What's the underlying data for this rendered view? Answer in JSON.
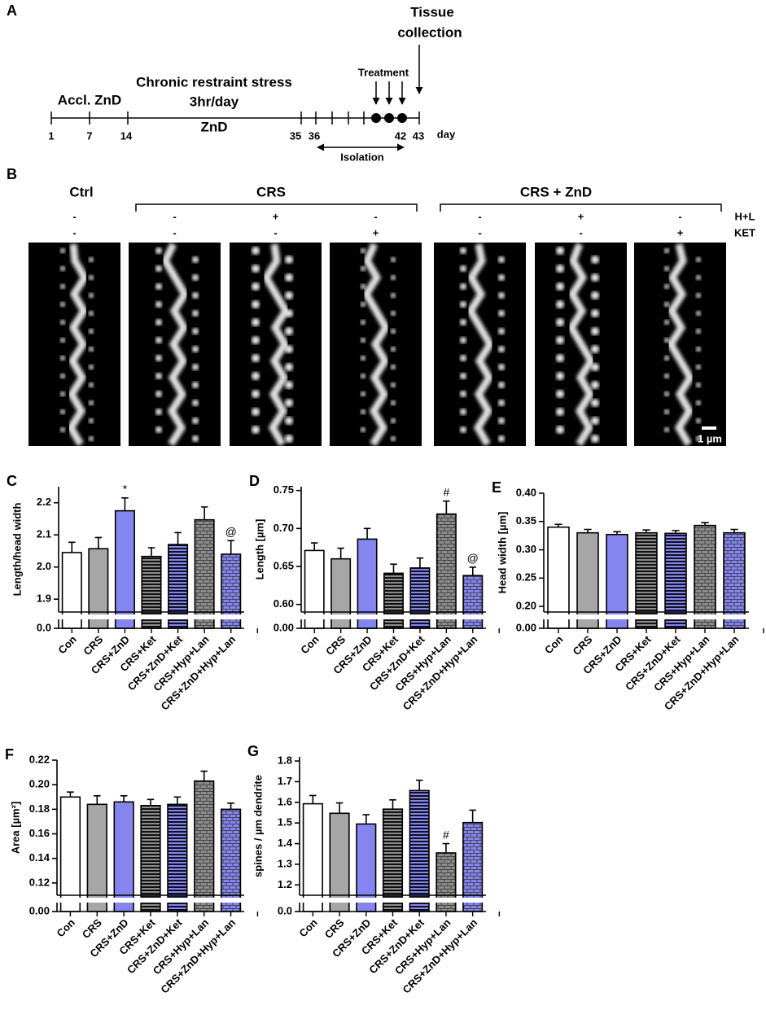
{
  "timeline": {
    "panel": "A",
    "tissue": [
      "Tissue",
      "collection"
    ],
    "treatment": "Treatment",
    "accl": "Accl. ZnD",
    "crs": [
      "Chronic restraint stress",
      "3hr/day",
      "ZnD"
    ],
    "days": [
      "1",
      "7",
      "14",
      "35",
      "36",
      "42",
      "43"
    ],
    "day_unit": "day",
    "isolation": "Isolation"
  },
  "images": {
    "panel": "B",
    "groups": [
      "Ctrl",
      "CRS",
      "CRS + ZnD"
    ],
    "rows": [
      {
        "name": "H+L",
        "signs": [
          "-",
          "-",
          "+",
          "-",
          "-",
          "+",
          "-"
        ]
      },
      {
        "name": "KET",
        "signs": [
          "-",
          "-",
          "-",
          "+",
          "-",
          "-",
          "+"
        ]
      }
    ],
    "scale_bar": "1 µm"
  },
  "chart_data": [
    {
      "type": "bar",
      "panel": "C",
      "y_label": "Length/head width",
      "categories": [
        "Con",
        "CRS",
        "CRS+ZnD",
        "CRS+Ket",
        "CRS+ZnD+Ket",
        "CRS+Hyp+Lan",
        "CRS+ZnD+Hyp+Lan"
      ],
      "values": [
        2.045,
        2.057,
        2.175,
        2.033,
        2.07,
        2.147,
        2.04
      ],
      "errors": [
        0.032,
        0.035,
        0.04,
        0.027,
        0.037,
        0.04,
        0.042
      ],
      "colors": [
        "#ffffff",
        "#a6a6a6",
        "#8585f0",
        "#8c8c8c",
        "#8585f0",
        "#8c8c8c",
        "#8585f0"
      ],
      "patterns": [
        "none",
        "none",
        "none",
        "stripes",
        "stripes",
        "bricks",
        "bricks"
      ],
      "annotations": [
        {
          "index": 2,
          "text": "*"
        },
        {
          "index": 6,
          "text": "@"
        }
      ],
      "ylim": [
        1.86,
        2.25
      ],
      "yticks": [
        {
          "value": 0,
          "label": "0.0"
        },
        1.9,
        {
          "value": 2.0,
          "label": "2.0"
        },
        2.1,
        2.2
      ],
      "axis_break": true
    },
    {
      "type": "bar",
      "panel": "D",
      "y_label": "Length [µm]",
      "categories": [
        "Con",
        "CRS",
        "CRS+ZnD",
        "CRS+Ket",
        "CRS+ZnD+Ket",
        "CRS+Hyp+Lan",
        "CRS+ZnD+Hyp+Lan"
      ],
      "values": [
        0.671,
        0.66,
        0.686,
        0.641,
        0.648,
        0.719,
        0.638
      ],
      "errors": [
        0.01,
        0.014,
        0.014,
        0.012,
        0.013,
        0.017,
        0.011
      ],
      "colors": [
        "#ffffff",
        "#a6a6a6",
        "#8585f0",
        "#8c8c8c",
        "#8585f0",
        "#8c8c8c",
        "#8585f0"
      ],
      "patterns": [
        "none",
        "none",
        "none",
        "stripes",
        "stripes",
        "bricks",
        "bricks"
      ],
      "annotations": [
        {
          "index": 5,
          "text": "#"
        },
        {
          "index": 6,
          "text": "@"
        }
      ],
      "ylim": [
        0.59,
        0.755
      ],
      "yticks": [
        {
          "value": 0,
          "label": "0.00"
        },
        {
          "value": 0.6,
          "label": "0.60"
        },
        0.65,
        {
          "value": 0.7,
          "label": "0.70"
        },
        0.75
      ],
      "axis_break": true
    },
    {
      "type": "bar",
      "panel": "E",
      "y_label": "Head width [µm]",
      "categories": [
        "Con",
        "CRS",
        "CRS+ZnD",
        "CRS+Ket",
        "CRS+ZnD+Ket",
        "CRS+Hyp+Lan",
        "CRS+ZnD+Hyp+Lan"
      ],
      "values": [
        0.34,
        0.33,
        0.327,
        0.33,
        0.329,
        0.343,
        0.33
      ],
      "errors": [
        0.005,
        0.006,
        0.005,
        0.005,
        0.005,
        0.005,
        0.006
      ],
      "colors": [
        "#ffffff",
        "#a6a6a6",
        "#8585f0",
        "#8c8c8c",
        "#8585f0",
        "#8c8c8c",
        "#8585f0"
      ],
      "patterns": [
        "none",
        "none",
        "none",
        "stripes",
        "stripes",
        "bricks",
        "bricks"
      ],
      "annotations": [],
      "ylim": [
        0.19,
        0.4
      ],
      "yticks": [
        {
          "value": 0,
          "label": "0.00"
        },
        {
          "value": 0.2,
          "label": "0.20"
        },
        0.25,
        {
          "value": 0.3,
          "label": "0.30"
        },
        0.35,
        {
          "value": 0.4,
          "label": "0.40"
        }
      ],
      "axis_break": true
    },
    {
      "type": "bar",
      "panel": "F",
      "y_label": "Area [µm²]",
      "categories": [
        "Con",
        "CRS",
        "CRS+ZnD",
        "CRS+Ket",
        "CRS+ZnD+Ket",
        "CRS+Hyp+Lan",
        "CRS+ZnD+Hyp+Lan"
      ],
      "values": [
        0.19,
        0.184,
        0.186,
        0.183,
        0.184,
        0.203,
        0.18
      ],
      "errors": [
        0.004,
        0.007,
        0.005,
        0.005,
        0.006,
        0.008,
        0.005
      ],
      "colors": [
        "#ffffff",
        "#a6a6a6",
        "#8585f0",
        "#8c8c8c",
        "#8585f0",
        "#8c8c8c",
        "#8585f0"
      ],
      "patterns": [
        "none",
        "none",
        "none",
        "stripes",
        "stripes",
        "bricks",
        "bricks"
      ],
      "annotations": [],
      "ylim": [
        0.11,
        0.22
      ],
      "yticks": [
        {
          "value": 0,
          "label": "0.00"
        },
        0.12,
        0.14,
        0.16,
        0.18,
        {
          "value": 0.2,
          "label": "0.20"
        },
        0.22
      ],
      "axis_break": true
    },
    {
      "type": "bar",
      "panel": "G",
      "y_label": "spines / µm dendrite",
      "categories": [
        "Con",
        "CRS",
        "CRS+ZnD",
        "CRS+Ket",
        "CRS+ZnD+Ket",
        "CRS+Hyp+Lan",
        "CRS+ZnD+Hyp+Lan"
      ],
      "values": [
        1.593,
        1.547,
        1.495,
        1.567,
        1.657,
        1.355,
        1.502
      ],
      "errors": [
        0.04,
        0.05,
        0.045,
        0.045,
        0.05,
        0.045,
        0.06
      ],
      "colors": [
        "#ffffff",
        "#a6a6a6",
        "#8585f0",
        "#8c8c8c",
        "#8585f0",
        "#8c8c8c",
        "#8585f0"
      ],
      "patterns": [
        "none",
        "none",
        "none",
        "stripes",
        "stripes",
        "bricks",
        "bricks"
      ],
      "annotations": [
        {
          "index": 5,
          "text": "#"
        }
      ],
      "ylim": [
        1.15,
        1.82
      ],
      "yticks": [
        {
          "value": 0,
          "label": "0.0"
        },
        1.2,
        1.3,
        1.4,
        1.5,
        1.6,
        1.7,
        1.8
      ],
      "axis_break": true
    }
  ]
}
